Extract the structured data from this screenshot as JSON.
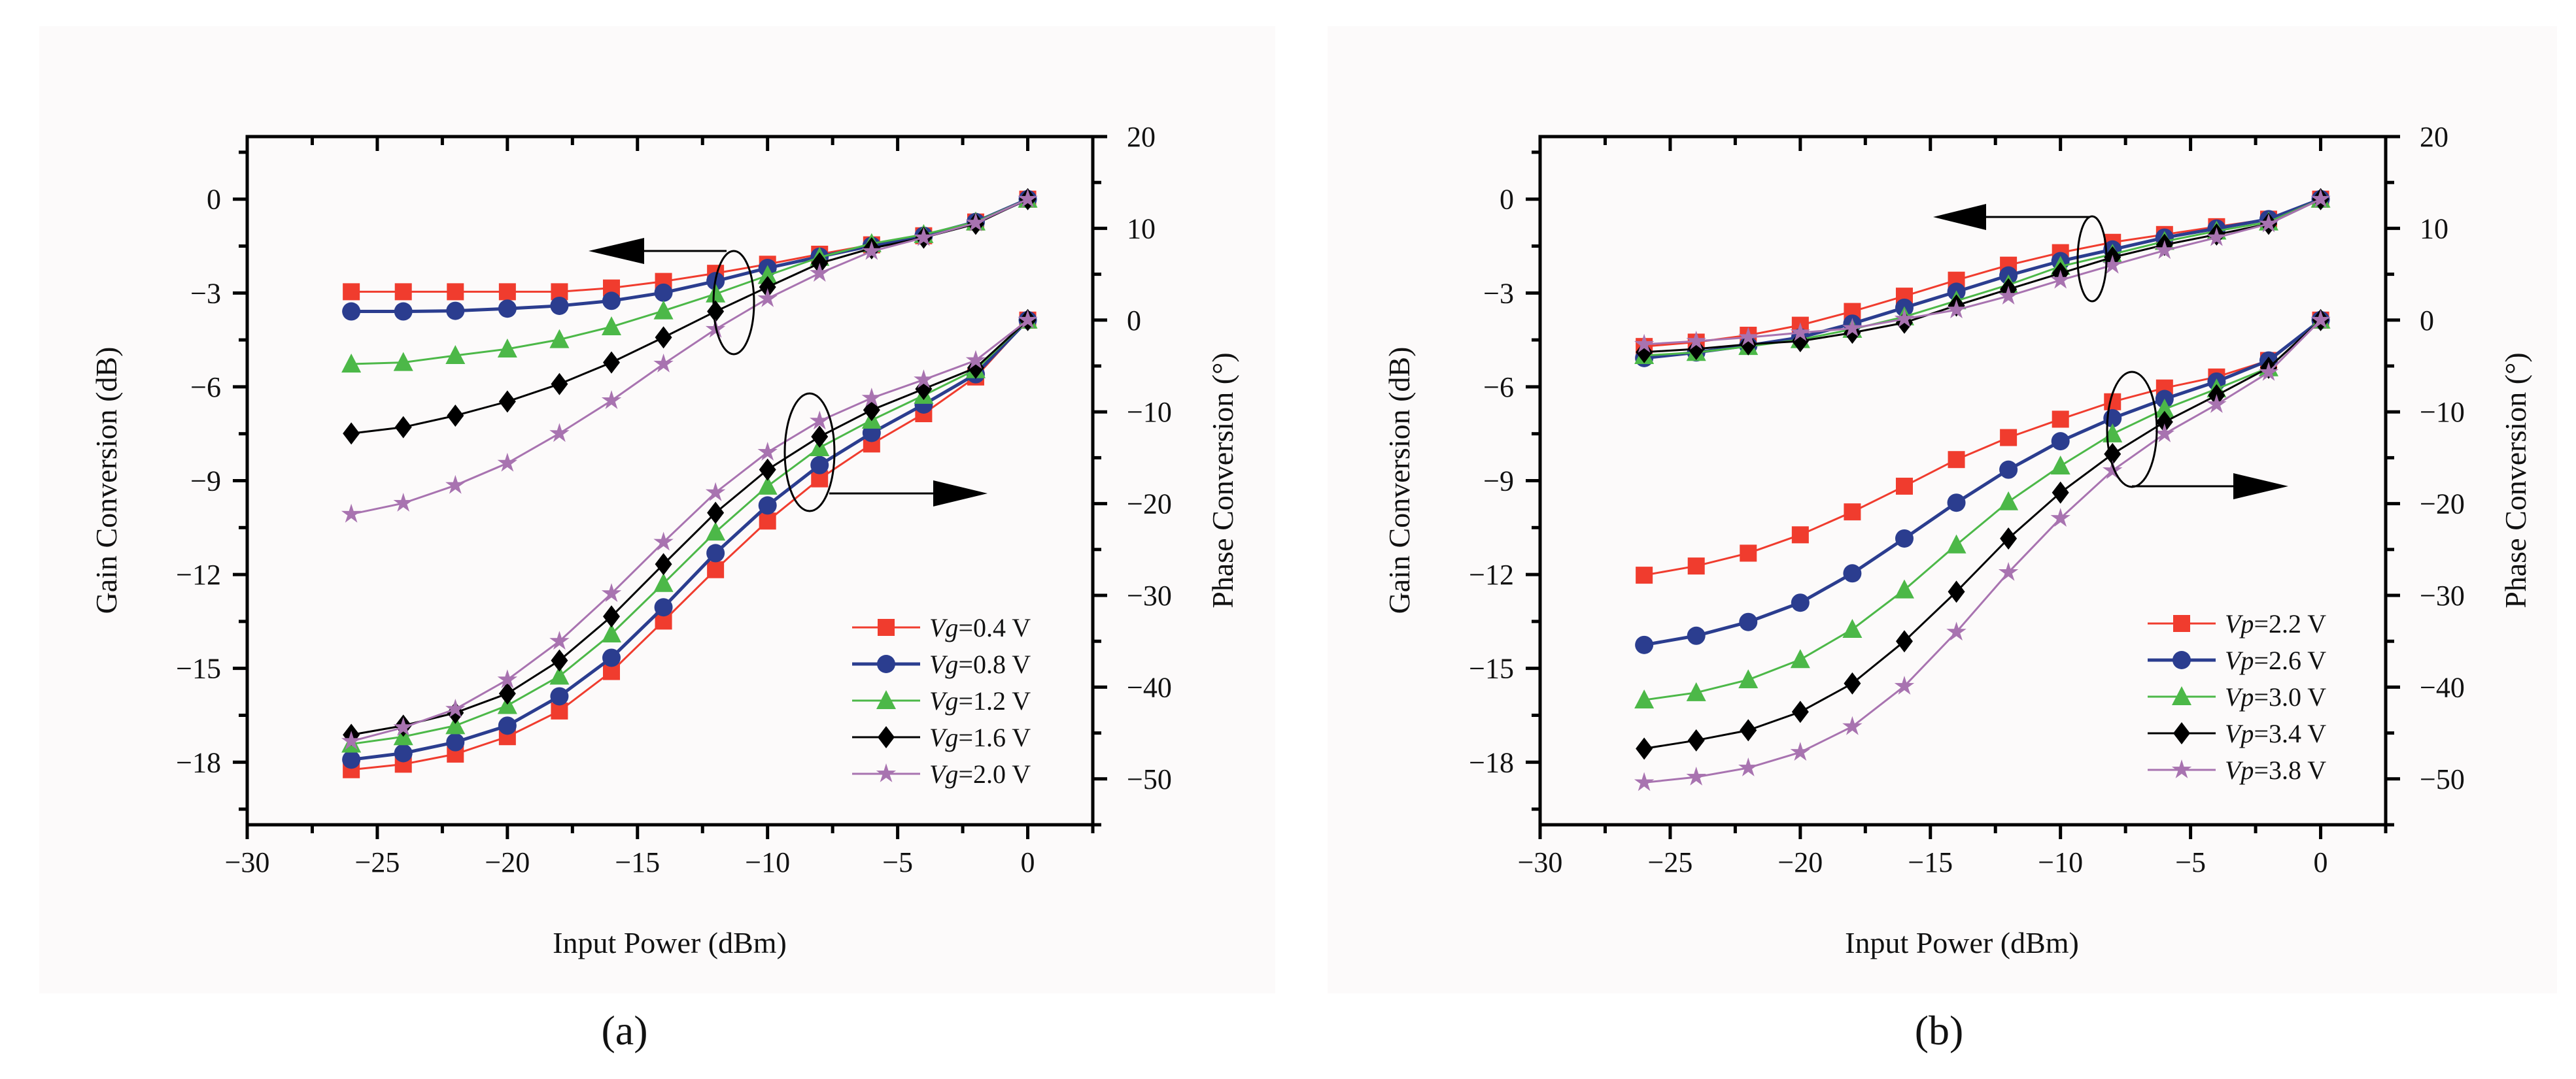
{
  "chart_data": [
    {
      "id": "a",
      "type": "line",
      "panel_label": "(a)",
      "xlabel": "Input Power (dBm)",
      "ylabel": "Gain Conversion (dB)",
      "y2label": "Phase Conversion (°)",
      "xlim": [
        -30,
        2.5
      ],
      "ylim": [
        -20,
        2
      ],
      "y2lim": [
        -55,
        20
      ],
      "xticks": [
        -30,
        -25,
        -20,
        -15,
        -10,
        -5,
        0
      ],
      "yticks": [
        0,
        -3,
        -6,
        -9,
        -12,
        -15,
        -18
      ],
      "y2ticks": [
        20,
        10,
        0,
        -10,
        -20,
        -30,
        -40,
        -50
      ],
      "legend_position": "bottom-right",
      "x": [
        -26,
        -24,
        -22,
        -20,
        -18,
        -16,
        -14,
        -12,
        -10,
        -8,
        -6,
        -4,
        -2,
        0
      ],
      "series": [
        {
          "name": "Vg=0.4 V",
          "color": "#f03c2e",
          "marker": "square",
          "gain": [
            -2.96,
            -2.96,
            -2.96,
            -2.96,
            -2.96,
            -2.84,
            -2.63,
            -2.37,
            -2.08,
            -1.76,
            -1.46,
            -1.17,
            -0.73,
            0
          ],
          "phase": [
            -49.0,
            -48.4,
            -47.3,
            -45.4,
            -42.6,
            -38.3,
            -32.8,
            -27.2,
            -21.9,
            -17.3,
            -13.5,
            -10.2,
            -6.2,
            0
          ]
        },
        {
          "name": "Vg=0.8 V",
          "color": "#2b3d8f",
          "marker": "circle",
          "gain": [
            -3.59,
            -3.59,
            -3.57,
            -3.5,
            -3.41,
            -3.25,
            -2.99,
            -2.62,
            -2.2,
            -1.84,
            -1.49,
            -1.17,
            -0.73,
            0
          ],
          "phase": [
            -47.9,
            -47.2,
            -46.0,
            -44.2,
            -41.0,
            -36.8,
            -31.3,
            -25.4,
            -20.2,
            -15.8,
            -12.3,
            -9.2,
            -5.9,
            0
          ]
        },
        {
          "name": "Vg=1.2 V",
          "color": "#4cb848",
          "marker": "triangle",
          "gain": [
            -5.27,
            -5.22,
            -5.0,
            -4.79,
            -4.49,
            -4.08,
            -3.57,
            -3.03,
            -2.44,
            -1.86,
            -1.42,
            -1.13,
            -0.73,
            0
          ],
          "phase": [
            -46.2,
            -45.4,
            -44.2,
            -42.0,
            -38.8,
            -34.2,
            -28.7,
            -23.1,
            -18.1,
            -13.9,
            -10.9,
            -8.2,
            -5.4,
            0
          ]
        },
        {
          "name": "Vg=1.6 V",
          "color": "#000000",
          "marker": "diamond",
          "gain": [
            -7.49,
            -7.29,
            -6.92,
            -6.47,
            -5.91,
            -5.22,
            -4.42,
            -3.59,
            -2.81,
            -2.05,
            -1.57,
            -1.23,
            -0.79,
            0
          ],
          "phase": [
            -45.2,
            -44.2,
            -42.8,
            -40.7,
            -37.1,
            -32.3,
            -26.6,
            -21.0,
            -16.3,
            -12.7,
            -9.8,
            -7.5,
            -5.2,
            0
          ]
        },
        {
          "name": "Vg=2.0 V",
          "color": "#a873b0",
          "marker": "star",
          "gain": [
            -10.07,
            -9.72,
            -9.15,
            -8.44,
            -7.49,
            -6.44,
            -5.27,
            -4.16,
            -3.18,
            -2.37,
            -1.67,
            -1.23,
            -0.76,
            0
          ],
          "phase": [
            -45.9,
            -44.4,
            -42.4,
            -39.2,
            -35.0,
            -29.8,
            -24.2,
            -18.8,
            -14.4,
            -11.0,
            -8.5,
            -6.5,
            -4.4,
            0
          ]
        }
      ]
    },
    {
      "id": "b",
      "type": "line",
      "panel_label": "(b)",
      "xlabel": "Input Power (dBm)",
      "ylabel": "Gain Conversion (dB)",
      "y2label": "Phase Conversion (°)",
      "xlim": [
        -30,
        2.5
      ],
      "ylim": [
        -20,
        2
      ],
      "y2lim": [
        -55,
        20
      ],
      "xticks": [
        -30,
        -25,
        -20,
        -15,
        -10,
        -5,
        0
      ],
      "yticks": [
        0,
        -3,
        -6,
        -9,
        -12,
        -15,
        -18
      ],
      "y2ticks": [
        20,
        10,
        0,
        -10,
        -20,
        -30,
        -40,
        -50
      ],
      "legend_position": "bottom-right",
      "x": [
        -26,
        -24,
        -22,
        -20,
        -18,
        -16,
        -14,
        -12,
        -10,
        -8,
        -6,
        -4,
        -2,
        0
      ],
      "series": [
        {
          "name": "Vp=2.2 V",
          "color": "#f03c2e",
          "marker": "square",
          "gain": [
            -4.71,
            -4.57,
            -4.35,
            -4.03,
            -3.59,
            -3.1,
            -2.59,
            -2.11,
            -1.71,
            -1.38,
            -1.13,
            -0.88,
            -0.64,
            0
          ],
          "phase": [
            -27.8,
            -26.8,
            -25.4,
            -23.4,
            -20.9,
            -18.1,
            -15.2,
            -12.8,
            -10.8,
            -8.9,
            -7.4,
            -6.2,
            -4.4,
            0
          ]
        },
        {
          "name": "Vp=2.6 V",
          "color": "#2b3d8f",
          "marker": "circle",
          "gain": [
            -5.08,
            -4.9,
            -4.68,
            -4.42,
            -3.98,
            -3.47,
            -2.96,
            -2.44,
            -1.98,
            -1.61,
            -1.23,
            -0.94,
            -0.64,
            0
          ],
          "phase": [
            -35.4,
            -34.4,
            -32.9,
            -30.8,
            -27.6,
            -23.8,
            -19.9,
            -16.3,
            -13.2,
            -10.7,
            -8.6,
            -6.7,
            -4.4,
            0
          ]
        },
        {
          "name": "Vp=3.0 V",
          "color": "#4cb848",
          "marker": "triangle",
          "gain": [
            -5.0,
            -4.9,
            -4.71,
            -4.49,
            -4.16,
            -3.76,
            -3.25,
            -2.74,
            -2.15,
            -1.76,
            -1.35,
            -1.02,
            -0.73,
            0
          ],
          "phase": [
            -41.4,
            -40.6,
            -39.2,
            -37.0,
            -33.7,
            -29.4,
            -24.5,
            -19.8,
            -15.9,
            -12.4,
            -9.7,
            -7.5,
            -5.2,
            0
          ]
        },
        {
          "name": "Vp=3.4 V",
          "color": "#000000",
          "marker": "diamond",
          "gain": [
            -4.89,
            -4.79,
            -4.64,
            -4.54,
            -4.27,
            -3.95,
            -3.4,
            -2.88,
            -2.37,
            -1.86,
            -1.46,
            -1.13,
            -0.79,
            0
          ],
          "phase": [
            -46.7,
            -45.8,
            -44.7,
            -42.7,
            -39.6,
            -35.0,
            -29.6,
            -23.8,
            -18.8,
            -14.6,
            -11.1,
            -8.2,
            -5.2,
            0
          ]
        },
        {
          "name": "Vp=3.8 V",
          "color": "#a873b0",
          "marker": "star",
          "gain": [
            -4.64,
            -4.54,
            -4.42,
            -4.27,
            -4.13,
            -3.83,
            -3.54,
            -3.1,
            -2.59,
            -2.11,
            -1.64,
            -1.23,
            -0.79,
            0
          ],
          "phase": [
            -50.4,
            -49.8,
            -48.8,
            -47.1,
            -44.3,
            -39.9,
            -34.0,
            -27.5,
            -21.6,
            -16.4,
            -12.4,
            -9.2,
            -5.7,
            0
          ]
        }
      ]
    }
  ]
}
